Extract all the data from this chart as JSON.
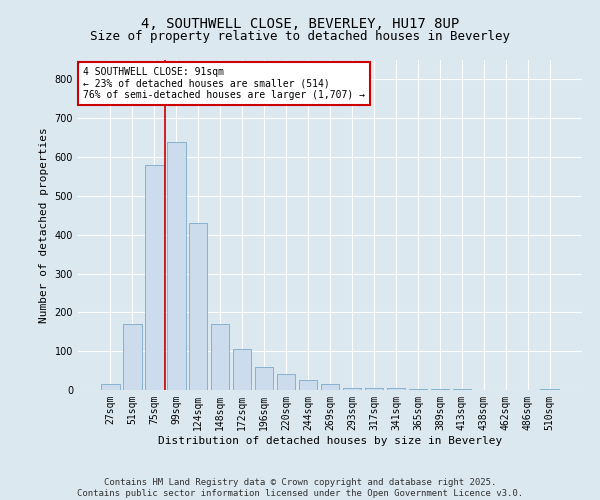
{
  "title": "4, SOUTHWELL CLOSE, BEVERLEY, HU17 8UP",
  "subtitle": "Size of property relative to detached houses in Beverley",
  "xlabel": "Distribution of detached houses by size in Beverley",
  "ylabel": "Number of detached properties",
  "bar_labels": [
    "27sqm",
    "51sqm",
    "75sqm",
    "99sqm",
    "124sqm",
    "148sqm",
    "172sqm",
    "196sqm",
    "220sqm",
    "244sqm",
    "269sqm",
    "293sqm",
    "317sqm",
    "341sqm",
    "365sqm",
    "389sqm",
    "413sqm",
    "438sqm",
    "462sqm",
    "486sqm",
    "510sqm"
  ],
  "bar_values": [
    15,
    170,
    580,
    640,
    430,
    170,
    105,
    60,
    40,
    25,
    15,
    5,
    5,
    5,
    3,
    3,
    2,
    1,
    0,
    0,
    2
  ],
  "bar_color": "#ccdcec",
  "bar_edge_color": "#7aaac8",
  "vline_color": "#cc0000",
  "vline_x": 2.5,
  "annotation_text": "4 SOUTHWELL CLOSE: 91sqm\n← 23% of detached houses are smaller (514)\n76% of semi-detached houses are larger (1,707) →",
  "annotation_box_color": "#ffffff",
  "annotation_box_edge_color": "#cc0000",
  "ylim": [
    0,
    850
  ],
  "yticks": [
    0,
    100,
    200,
    300,
    400,
    500,
    600,
    700,
    800
  ],
  "footer": "Contains HM Land Registry data © Crown copyright and database right 2025.\nContains public sector information licensed under the Open Government Licence v3.0.",
  "background_color": "#dce8f0",
  "plot_background_color": "#dce8f0",
  "title_fontsize": 10,
  "subtitle_fontsize": 9,
  "axis_label_fontsize": 8,
  "tick_fontsize": 7,
  "annotation_fontsize": 7,
  "footer_fontsize": 6.5
}
